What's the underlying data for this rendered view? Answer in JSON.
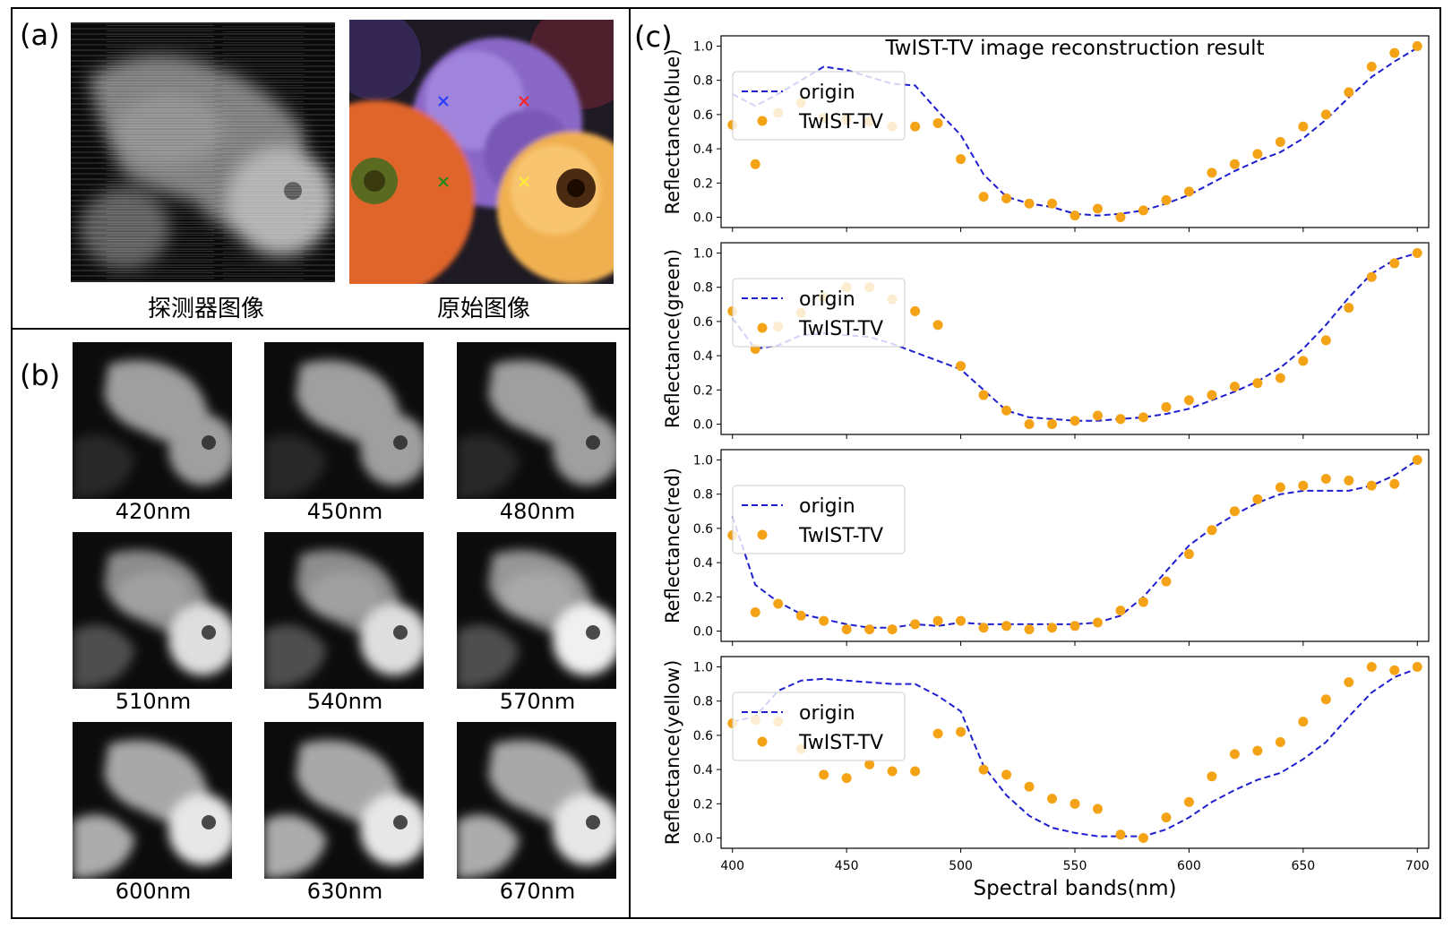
{
  "panels": {
    "a": {
      "label": "(a)",
      "detector_caption": "探测器图像",
      "original_caption": "原始图像"
    },
    "b": {
      "label": "(b)",
      "wavelengths": [
        "420nm",
        "450nm",
        "480nm",
        "510nm",
        "540nm",
        "570nm",
        "600nm",
        "630nm",
        "670nm"
      ]
    },
    "c": {
      "label": "(c)"
    }
  },
  "markers": [
    {
      "name": "blue-marker",
      "color": "#1f3dff"
    },
    {
      "name": "red-marker",
      "color": "#ff2020"
    },
    {
      "name": "green-marker",
      "color": "#1a8a1a"
    },
    {
      "name": "yellow-marker",
      "color": "#ffee33"
    }
  ],
  "colors": {
    "origin_line": "#1f1fd0",
    "twist_points": "#f5a316",
    "legend_border": "#cccccc"
  },
  "chart_data": {
    "title": "TwIST-TV image reconstruction result",
    "type": "line",
    "xlabel": "Spectral bands(nm)",
    "xlim": [
      400,
      700
    ],
    "xticks": [
      400,
      450,
      500,
      550,
      600,
      650,
      700
    ],
    "ylim": [
      0,
      1
    ],
    "yticks": [
      "0.0",
      "0.2",
      "0.4",
      "0.6",
      "0.8",
      "1.0"
    ],
    "legend": {
      "placement": "upper-left",
      "entries": [
        "origin",
        "TwIST-TV"
      ]
    },
    "x": [
      400,
      410,
      420,
      430,
      440,
      450,
      460,
      470,
      480,
      490,
      500,
      510,
      520,
      530,
      540,
      550,
      560,
      570,
      580,
      590,
      600,
      610,
      620,
      630,
      640,
      650,
      660,
      670,
      680,
      690,
      700
    ],
    "subplots": [
      {
        "ylabel": "Reflectance(blue)",
        "origin": [
          0.72,
          0.65,
          0.72,
          0.8,
          0.88,
          0.86,
          0.82,
          0.78,
          0.77,
          0.62,
          0.48,
          0.25,
          0.12,
          0.08,
          0.06,
          0.02,
          0.01,
          0.02,
          0.04,
          0.08,
          0.13,
          0.2,
          0.27,
          0.33,
          0.38,
          0.46,
          0.57,
          0.7,
          0.82,
          0.91,
          0.99
        ],
        "twist": [
          0.54,
          0.31,
          0.61,
          0.67,
          0.58,
          0.57,
          0.56,
          0.53,
          0.53,
          0.55,
          0.34,
          0.12,
          0.11,
          0.08,
          0.08,
          0.01,
          0.05,
          0.0,
          0.04,
          0.1,
          0.15,
          0.26,
          0.31,
          0.37,
          0.44,
          0.53,
          0.6,
          0.73,
          0.88,
          0.96,
          1.0
        ]
      },
      {
        "ylabel": "Reflectance(green)",
        "origin": [
          0.62,
          0.44,
          0.46,
          0.52,
          0.53,
          0.52,
          0.51,
          0.47,
          0.42,
          0.37,
          0.32,
          0.2,
          0.08,
          0.04,
          0.03,
          0.02,
          0.02,
          0.03,
          0.04,
          0.06,
          0.09,
          0.14,
          0.19,
          0.25,
          0.33,
          0.44,
          0.58,
          0.74,
          0.88,
          0.96,
          1.0
        ],
        "twist": [
          0.66,
          0.44,
          0.57,
          0.65,
          0.74,
          0.8,
          0.8,
          0.73,
          0.66,
          0.58,
          0.34,
          0.17,
          0.08,
          0.0,
          0.0,
          0.02,
          0.05,
          0.03,
          0.04,
          0.1,
          0.14,
          0.17,
          0.22,
          0.24,
          0.27,
          0.37,
          0.49,
          0.68,
          0.86,
          0.94,
          1.0
        ]
      },
      {
        "ylabel": "Reflectance(red)",
        "origin": [
          0.67,
          0.27,
          0.17,
          0.1,
          0.07,
          0.04,
          0.02,
          0.02,
          0.04,
          0.03,
          0.05,
          0.04,
          0.04,
          0.04,
          0.04,
          0.04,
          0.05,
          0.09,
          0.2,
          0.35,
          0.5,
          0.6,
          0.68,
          0.75,
          0.8,
          0.82,
          0.82,
          0.82,
          0.85,
          0.91,
          1.0
        ],
        "twist": [
          0.56,
          0.11,
          0.16,
          0.09,
          0.06,
          0.01,
          0.01,
          0.01,
          0.04,
          0.06,
          0.06,
          0.02,
          0.03,
          0.01,
          0.02,
          0.03,
          0.05,
          0.12,
          0.17,
          0.29,
          0.45,
          0.59,
          0.7,
          0.77,
          0.84,
          0.85,
          0.89,
          0.88,
          0.85,
          0.86,
          1.0
        ]
      },
      {
        "ylabel": "Reflectance(yellow)",
        "origin": [
          0.68,
          0.71,
          0.86,
          0.92,
          0.93,
          0.92,
          0.91,
          0.9,
          0.9,
          0.83,
          0.74,
          0.42,
          0.25,
          0.13,
          0.06,
          0.03,
          0.01,
          0.01,
          0.01,
          0.05,
          0.12,
          0.21,
          0.28,
          0.34,
          0.38,
          0.46,
          0.56,
          0.71,
          0.85,
          0.94,
          0.99
        ],
        "twist": [
          0.67,
          0.69,
          0.68,
          0.52,
          0.37,
          0.35,
          0.43,
          0.39,
          0.39,
          0.61,
          0.62,
          0.4,
          0.37,
          0.3,
          0.23,
          0.2,
          0.17,
          0.02,
          0.0,
          0.12,
          0.21,
          0.36,
          0.49,
          0.51,
          0.56,
          0.68,
          0.81,
          0.91,
          1.0,
          0.98,
          1.0
        ]
      }
    ]
  }
}
